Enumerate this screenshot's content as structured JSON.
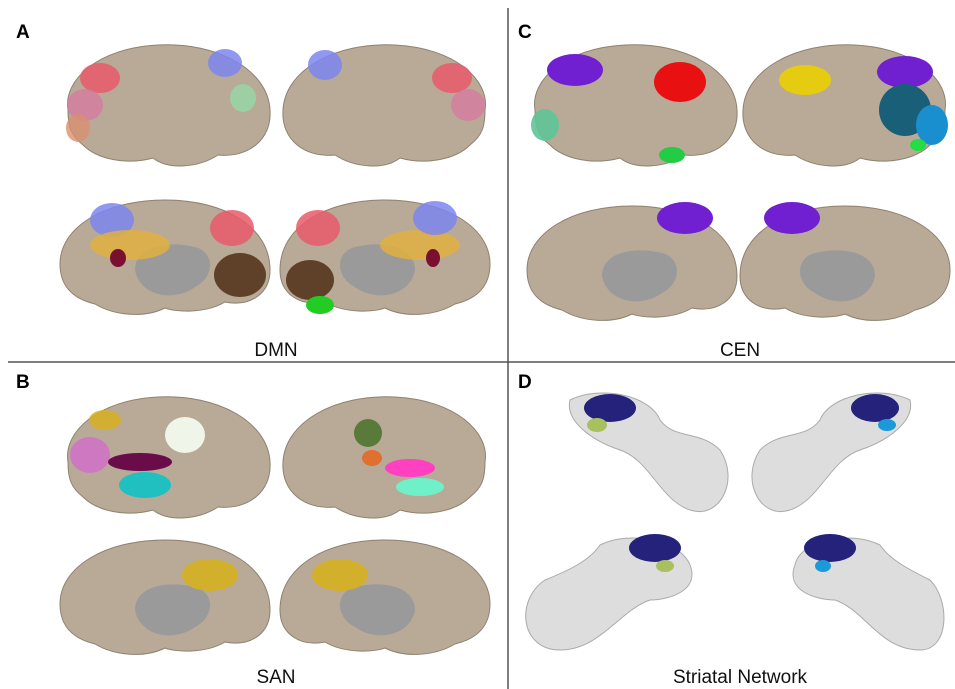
{
  "panels": [
    {
      "letter": "A",
      "caption": "DMN"
    },
    {
      "letter": "C",
      "caption": "CEN"
    },
    {
      "letter": "B",
      "caption": "SAN"
    },
    {
      "letter": "D",
      "caption": "Striatal Network"
    }
  ]
}
